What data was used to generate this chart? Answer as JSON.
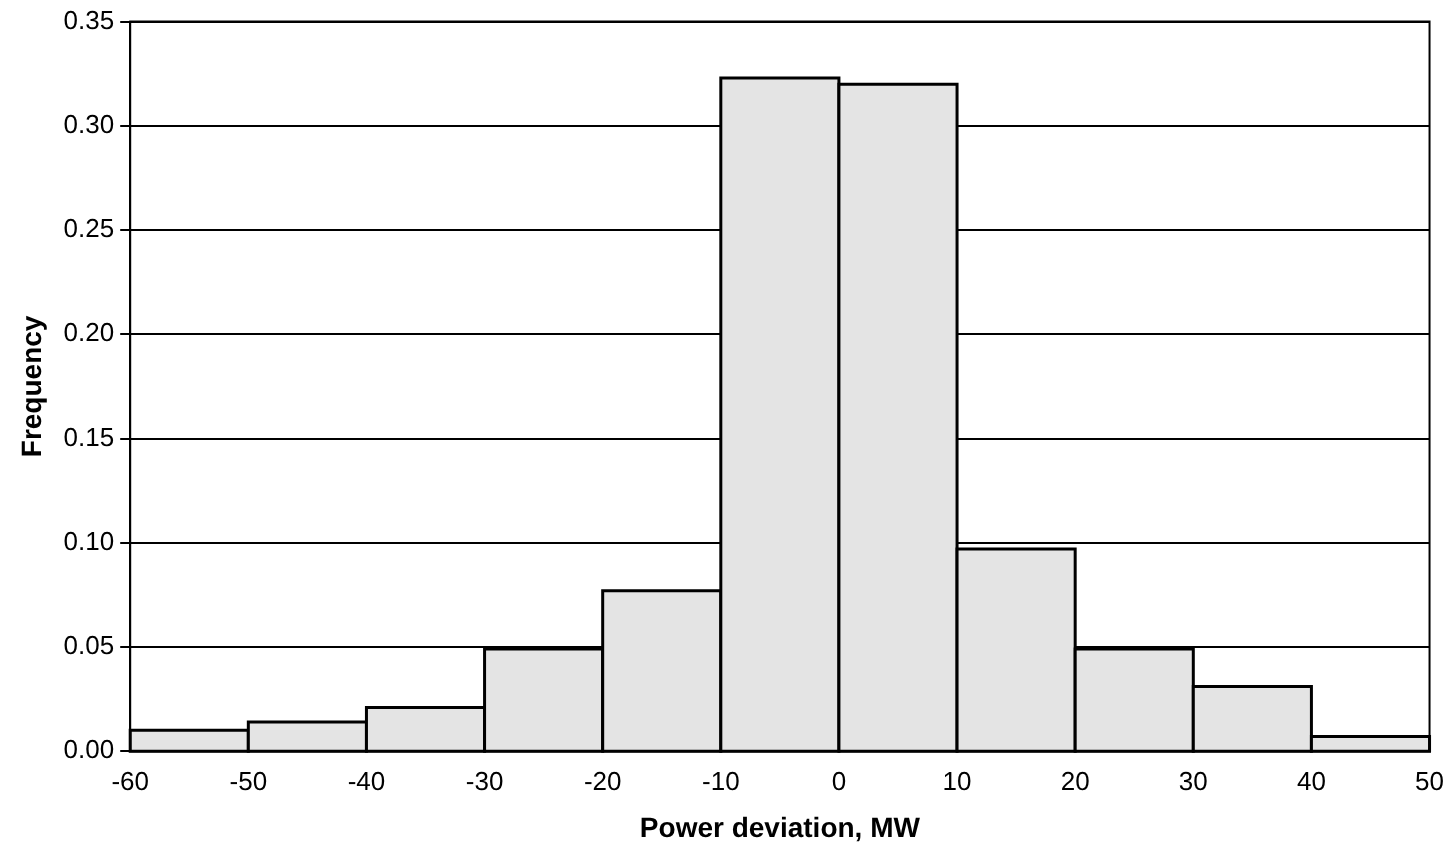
{
  "chart_data": {
    "type": "histogram",
    "xlabel": "Power deviation, MW",
    "ylabel": "Frequency",
    "bins": [
      -60,
      -50,
      -40,
      -30,
      -20,
      -10,
      0,
      10,
      20,
      30,
      40,
      50
    ],
    "values": [
      0.01,
      0.014,
      0.021,
      0.049,
      0.077,
      0.323,
      0.32,
      0.097,
      0.049,
      0.031,
      0.007
    ],
    "color": "#e4e4e4",
    "xlim": [
      -60,
      50
    ],
    "xticks": [
      -60,
      -50,
      -40,
      -30,
      -20,
      -10,
      0,
      10,
      20,
      30,
      40,
      50
    ],
    "ylim": [
      0,
      0.35
    ],
    "yticks": [
      {
        "value": 0,
        "label": "0.00"
      },
      {
        "value": 0.05,
        "label": "0.05"
      },
      {
        "value": 0.1,
        "label": "0.10"
      },
      {
        "value": 0.15,
        "label": "0.15"
      },
      {
        "value": 0.2,
        "label": "0.20"
      },
      {
        "value": 0.25,
        "label": "0.25"
      },
      {
        "value": 0.3,
        "label": "0.30"
      },
      {
        "value": 0.35,
        "label": "0.35"
      }
    ],
    "grid": "y",
    "legend": false
  }
}
